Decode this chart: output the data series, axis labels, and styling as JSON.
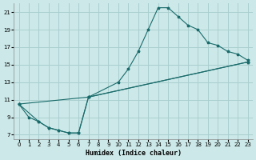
{
  "xlabel": "Humidex (Indice chaleur)",
  "bg_color": "#cce8e8",
  "grid_color": "#aacfcf",
  "line_color": "#1a6b6b",
  "xlim": [
    -0.5,
    23.5
  ],
  "ylim": [
    6.5,
    22
  ],
  "yticks": [
    7,
    9,
    11,
    13,
    15,
    17,
    19,
    21
  ],
  "xticks": [
    0,
    1,
    2,
    3,
    4,
    5,
    6,
    7,
    8,
    9,
    10,
    11,
    12,
    13,
    14,
    15,
    16,
    17,
    18,
    19,
    20,
    21,
    22,
    23
  ],
  "line1_x": [
    0,
    1,
    2,
    3,
    4,
    5,
    6,
    7,
    10,
    11,
    12,
    13,
    14,
    15,
    16,
    17,
    18,
    19,
    20,
    21,
    22,
    23
  ],
  "line1_y": [
    10.5,
    9.0,
    8.5,
    7.8,
    7.5,
    7.2,
    7.2,
    11.3,
    13.0,
    14.5,
    16.5,
    19.0,
    21.5,
    21.5,
    20.5,
    19.5,
    19.0,
    17.5,
    17.2,
    16.5,
    16.2,
    15.5
  ],
  "line2_x": [
    0,
    2,
    3,
    4,
    5,
    6,
    7,
    23
  ],
  "line2_y": [
    10.5,
    8.5,
    7.8,
    7.5,
    7.2,
    7.2,
    11.3,
    15.3
  ],
  "line3_x": [
    0,
    7,
    23
  ],
  "line3_y": [
    10.5,
    11.3,
    15.3
  ]
}
